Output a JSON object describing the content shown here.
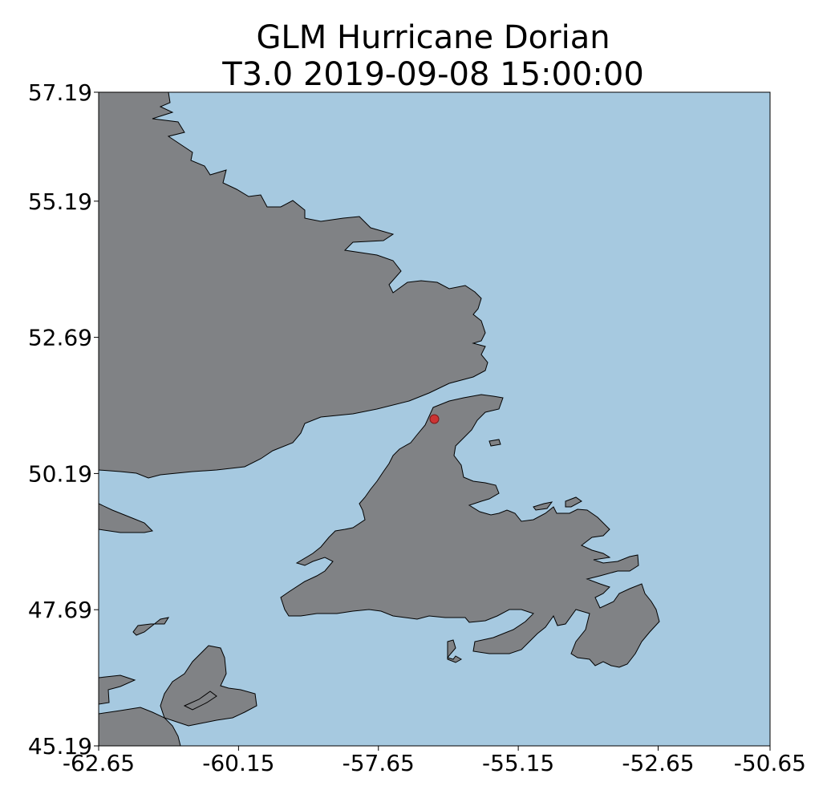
{
  "title": {
    "line1": "GLM Hurricane Dorian",
    "line2": "T3.0 2019-09-08 15:00:00"
  },
  "colors": {
    "ocean": "#a6c9e0",
    "land": "#808285",
    "coastline": "#000000",
    "marker_fill": "#cc3333",
    "marker_edge": "#7a1a1a"
  },
  "chart_data": {
    "type": "scatter",
    "map_projection": "plate-carree",
    "xlim": [
      -62.65,
      -50.65
    ],
    "ylim": [
      45.19,
      57.19
    ],
    "x_ticks": [
      -62.65,
      -60.15,
      -57.65,
      -55.15,
      -52.65,
      -50.65
    ],
    "x_tick_labels": [
      "-62.65",
      "-60.15",
      "-57.65",
      "-55.15",
      "-52.65",
      "-50.65"
    ],
    "y_ticks": [
      45.19,
      47.69,
      50.19,
      52.69,
      55.19,
      57.19
    ],
    "y_tick_labels": [
      "45.19",
      "47.69",
      "50.19",
      "52.69",
      "55.19",
      "57.19"
    ],
    "xlabel": "",
    "ylabel": "",
    "grid": false,
    "legend": "none",
    "points": [
      {
        "lon": -56.65,
        "lat": 51.19
      }
    ]
  }
}
